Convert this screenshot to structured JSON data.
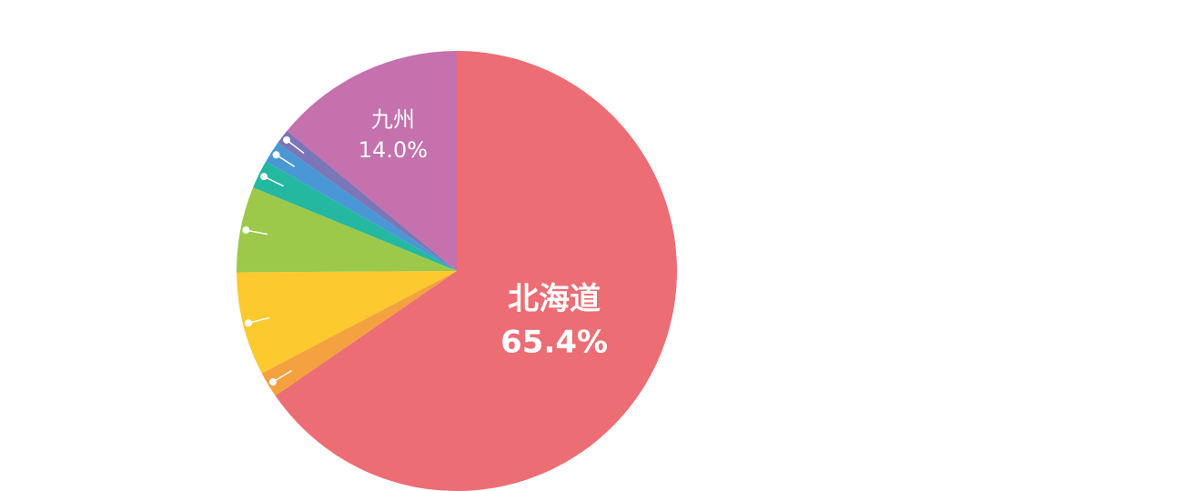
{
  "chart_data": {
    "type": "pie",
    "categories": [
      "北海道",
      null,
      null,
      null,
      null,
      null,
      null,
      "九州"
    ],
    "values": [
      65.4,
      1.9,
      7.6,
      6.3,
      2.1,
      1.6,
      1.1,
      14.0
    ],
    "value_labels": [
      "65.4%",
      null,
      null,
      null,
      null,
      null,
      null,
      "14.0%"
    ],
    "colors": [
      "#ec6d74",
      "#f4a13f",
      "#fcc92e",
      "#9dc94b",
      "#23b89f",
      "#4a97d6",
      "#7a76b7",
      "#c471ad"
    ]
  }
}
